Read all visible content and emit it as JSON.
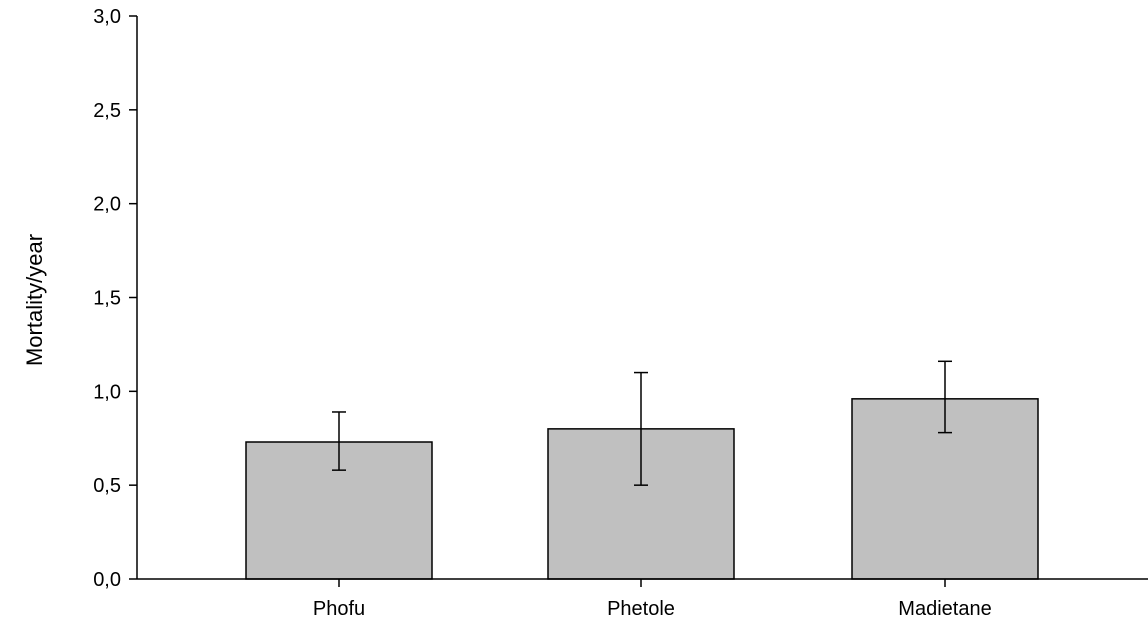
{
  "chart_data": {
    "type": "bar",
    "categories": [
      "Phofu",
      "Phetole",
      "Madietane"
    ],
    "values": [
      0.73,
      0.8,
      0.96
    ],
    "error": {
      "low": [
        0.58,
        0.5,
        0.78
      ],
      "high": [
        0.89,
        1.1,
        1.16
      ]
    },
    "title": "",
    "xlabel": "",
    "ylabel": "Mortality/year",
    "ylim": [
      0,
      3
    ],
    "yticks": [
      0,
      0.5,
      1,
      1.5,
      2,
      2.5,
      3
    ],
    "ytick_labels": [
      "0,0",
      "0,5",
      "1,0",
      "1,5",
      "2,0",
      "2,5",
      "3,0"
    ],
    "grid": false,
    "legend": "none",
    "colors": {
      "bar_fill": "#c0c0c0",
      "bar_stroke": "#000000",
      "axis": "#000000"
    }
  }
}
